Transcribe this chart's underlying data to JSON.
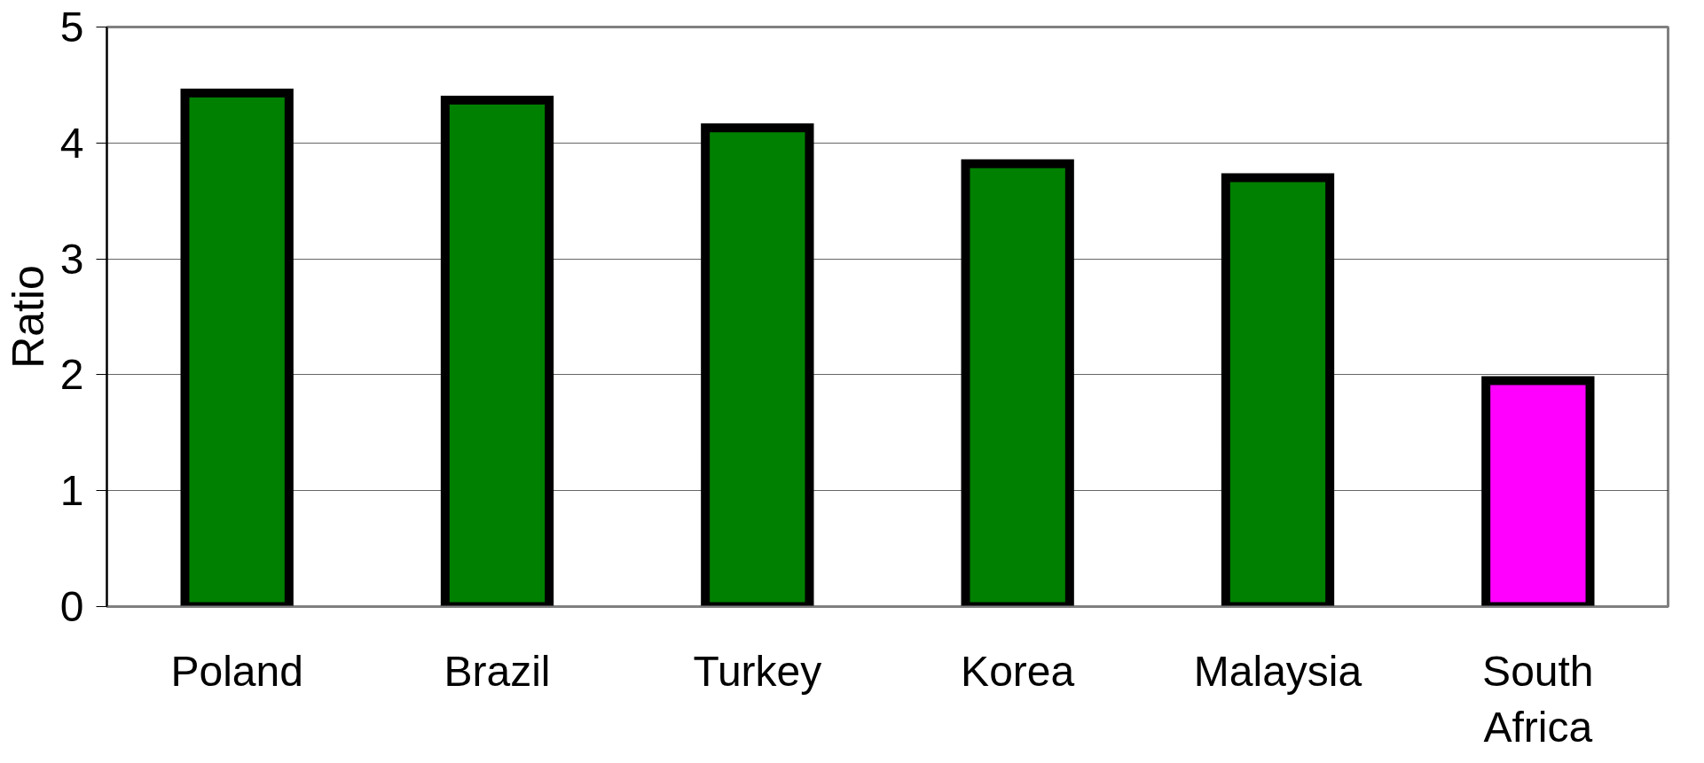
{
  "chart_data": {
    "type": "bar",
    "ylabel": "Ratio",
    "categories": [
      "Poland",
      "Brazil",
      "Turkey",
      "Korea",
      "Malaysia",
      "South Africa"
    ],
    "values": [
      4.43,
      4.37,
      4.13,
      3.82,
      3.7,
      1.95
    ],
    "colors": [
      "#008000",
      "#008000",
      "#008000",
      "#008000",
      "#008000",
      "#ff00ff"
    ],
    "ylim": [
      0,
      5
    ],
    "yticks": [
      0,
      1,
      2,
      3,
      4,
      5
    ],
    "grid": "y"
  }
}
